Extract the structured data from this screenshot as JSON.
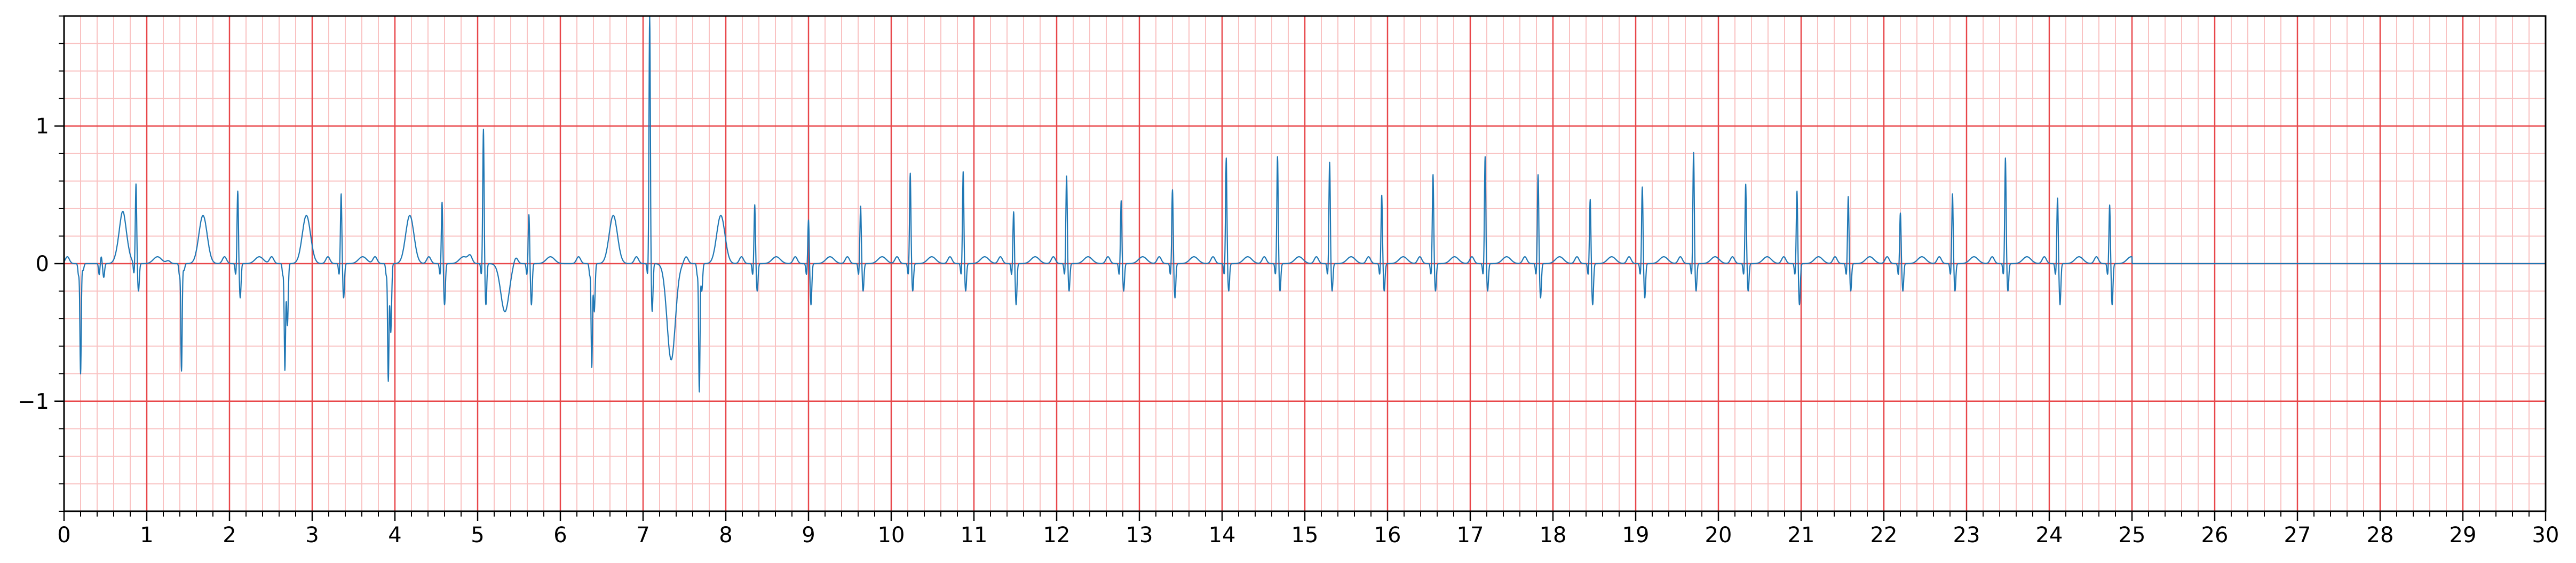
{
  "chart_data": {
    "type": "line",
    "title": "",
    "xlabel": "",
    "ylabel": "",
    "xlim": [
      0,
      30
    ],
    "ylim": [
      -1.8,
      1.8
    ],
    "x_ticks": [
      0,
      1,
      2,
      3,
      4,
      5,
      6,
      7,
      8,
      9,
      10,
      11,
      12,
      13,
      14,
      15,
      16,
      17,
      18,
      19,
      20,
      21,
      22,
      23,
      24,
      25,
      26,
      27,
      28,
      29,
      30
    ],
    "x_tick_labels": [
      "0",
      "1",
      "2",
      "3",
      "4",
      "5",
      "6",
      "7",
      "8",
      "9",
      "10",
      "11",
      "12",
      "13",
      "14",
      "15",
      "16",
      "17",
      "18",
      "19",
      "20",
      "21",
      "22",
      "23",
      "24",
      "25",
      "26",
      "27",
      "28",
      "29",
      "30"
    ],
    "y_ticks": [
      -1,
      0,
      1
    ],
    "y_tick_labels": [
      "−1",
      "0",
      "1"
    ],
    "grid": {
      "major": {
        "x_step": 1,
        "y_step": 1,
        "color": "#e8474a"
      },
      "minor": {
        "x_step": 0.2,
        "y_step": 0.2,
        "color": "#f9c2c2"
      }
    },
    "line_color": "#1f77b4",
    "series": [
      {
        "signal_end": 25.0,
        "beats": [
          {
            "t": 0.2,
            "r": -0.8,
            "p": 0.05,
            "tw": 0.0,
            "s": -0.05
          },
          {
            "t": 0.45,
            "r": 0.05,
            "p": 0.0,
            "tw": 0.33,
            "s": -0.1
          },
          {
            "t": 0.87,
            "r": 0.58,
            "p": 0.05,
            "tw": 0.05,
            "s": -0.2
          },
          {
            "t": 1.42,
            "r": -0.78,
            "p": 0.02,
            "tw": 0.35,
            "s": -0.05
          },
          {
            "t": 2.1,
            "r": 0.53,
            "p": 0.05,
            "tw": 0.05,
            "s": -0.25
          },
          {
            "t": 2.67,
            "r": -0.77,
            "p": 0.05,
            "tw": 0.35,
            "s": -0.45
          },
          {
            "t": 3.35,
            "r": 0.51,
            "p": 0.05,
            "tw": 0.05,
            "s": -0.25
          },
          {
            "t": 3.92,
            "r": -0.85,
            "p": 0.05,
            "tw": 0.35,
            "s": -0.5
          },
          {
            "t": 4.57,
            "r": 0.45,
            "p": 0.05,
            "tw": 0.05,
            "s": -0.3
          },
          {
            "t": 5.07,
            "r": 0.98,
            "p": 0.05,
            "tw": -0.35,
            "s": -0.3
          },
          {
            "t": 5.62,
            "r": 0.36,
            "p": 0.05,
            "tw": 0.05,
            "s": -0.3
          },
          {
            "t": 6.38,
            "r": -0.75,
            "p": 0.05,
            "tw": 0.35,
            "s": -0.35
          },
          {
            "t": 7.08,
            "r": 1.8,
            "p": 0.05,
            "tw": -0.7,
            "s": -0.35
          },
          {
            "t": 7.68,
            "r": -0.93,
            "p": 0.05,
            "tw": 0.35,
            "s": -0.2
          },
          {
            "t": 8.35,
            "r": 0.43,
            "p": 0.05,
            "tw": 0.05,
            "s": -0.2
          },
          {
            "t": 9.0,
            "r": 0.32,
            "p": 0.05,
            "tw": 0.05,
            "s": -0.3
          },
          {
            "t": 9.63,
            "r": 0.42,
            "p": 0.05,
            "tw": 0.05,
            "s": -0.2
          },
          {
            "t": 10.23,
            "r": 0.66,
            "p": 0.05,
            "tw": 0.05,
            "s": -0.2
          },
          {
            "t": 10.87,
            "r": 0.67,
            "p": 0.05,
            "tw": 0.05,
            "s": -0.2
          },
          {
            "t": 11.48,
            "r": 0.38,
            "p": 0.05,
            "tw": 0.05,
            "s": -0.3
          },
          {
            "t": 12.12,
            "r": 0.64,
            "p": 0.05,
            "tw": 0.05,
            "s": -0.2
          },
          {
            "t": 12.78,
            "r": 0.46,
            "p": 0.05,
            "tw": 0.05,
            "s": -0.2
          },
          {
            "t": 13.4,
            "r": 0.54,
            "p": 0.05,
            "tw": 0.05,
            "s": -0.25
          },
          {
            "t": 14.05,
            "r": 0.77,
            "p": 0.05,
            "tw": 0.05,
            "s": -0.2
          },
          {
            "t": 14.67,
            "r": 0.78,
            "p": 0.05,
            "tw": 0.05,
            "s": -0.2
          },
          {
            "t": 15.3,
            "r": 0.74,
            "p": 0.05,
            "tw": 0.05,
            "s": -0.2
          },
          {
            "t": 15.93,
            "r": 0.5,
            "p": 0.05,
            "tw": 0.05,
            "s": -0.2
          },
          {
            "t": 16.55,
            "r": 0.65,
            "p": 0.05,
            "tw": 0.05,
            "s": -0.2
          },
          {
            "t": 17.18,
            "r": 0.78,
            "p": 0.05,
            "tw": 0.05,
            "s": -0.2
          },
          {
            "t": 17.82,
            "r": 0.65,
            "p": 0.05,
            "tw": 0.05,
            "s": -0.25
          },
          {
            "t": 18.45,
            "r": 0.47,
            "p": 0.05,
            "tw": 0.05,
            "s": -0.3
          },
          {
            "t": 19.08,
            "r": 0.56,
            "p": 0.05,
            "tw": 0.05,
            "s": -0.25
          },
          {
            "t": 19.7,
            "r": 0.81,
            "p": 0.05,
            "tw": 0.05,
            "s": -0.2
          },
          {
            "t": 20.33,
            "r": 0.58,
            "p": 0.05,
            "tw": 0.05,
            "s": -0.2
          },
          {
            "t": 20.95,
            "r": 0.53,
            "p": 0.05,
            "tw": 0.05,
            "s": -0.3
          },
          {
            "t": 21.57,
            "r": 0.49,
            "p": 0.05,
            "tw": 0.05,
            "s": -0.2
          },
          {
            "t": 22.2,
            "r": 0.37,
            "p": 0.05,
            "tw": 0.05,
            "s": -0.2
          },
          {
            "t": 22.83,
            "r": 0.51,
            "p": 0.05,
            "tw": 0.05,
            "s": -0.2
          },
          {
            "t": 23.47,
            "r": 0.77,
            "p": 0.05,
            "tw": 0.05,
            "s": -0.2
          },
          {
            "t": 24.1,
            "r": 0.48,
            "p": 0.05,
            "tw": 0.05,
            "s": -0.3
          },
          {
            "t": 24.73,
            "r": 0.43,
            "p": 0.05,
            "tw": 0.05,
            "s": -0.3
          }
        ]
      }
    ]
  }
}
